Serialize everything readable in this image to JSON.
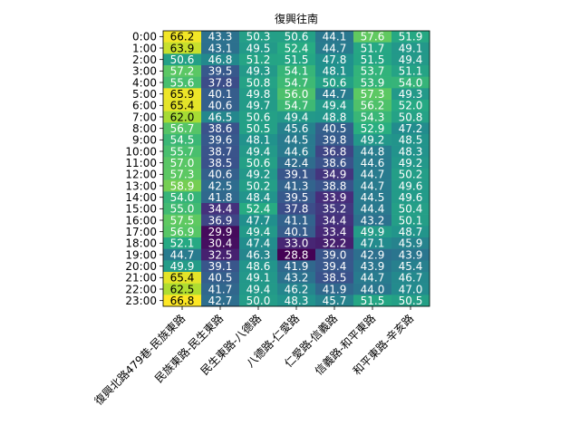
{
  "chart_data": {
    "type": "heatmap",
    "title": "復興往南",
    "xlabel": "",
    "ylabel": "",
    "colormap": "viridis",
    "value_range": [
      28.8,
      66.8
    ],
    "x_labels": [
      "復興北路479巷-民族東路",
      "民族東路-民生東路",
      "民生東路-八德路",
      "八德路-仁愛路",
      "仁愛路-信義路",
      "信義路-和平東路",
      "和平東路-辛亥路"
    ],
    "y_labels": [
      "0:00",
      "1:00",
      "2:00",
      "3:00",
      "4:00",
      "5:00",
      "6:00",
      "7:00",
      "8:00",
      "9:00",
      "10:00",
      "11:00",
      "12:00",
      "13:00",
      "14:00",
      "15:00",
      "16:00",
      "17:00",
      "18:00",
      "19:00",
      "20:00",
      "21:00",
      "22:00",
      "23:00"
    ],
    "values": [
      [
        66.2,
        43.3,
        50.3,
        50.6,
        44.1,
        57.6,
        51.9
      ],
      [
        63.9,
        43.1,
        49.5,
        52.4,
        44.7,
        51.7,
        49.1
      ],
      [
        50.6,
        46.8,
        51.2,
        51.5,
        47.8,
        51.5,
        49.4
      ],
      [
        57.2,
        39.5,
        49.3,
        54.1,
        48.1,
        53.7,
        51.1
      ],
      [
        55.6,
        37.8,
        50.8,
        54.7,
        50.6,
        53.9,
        54.0
      ],
      [
        65.9,
        40.1,
        49.8,
        56.0,
        44.7,
        57.3,
        49.3
      ],
      [
        65.4,
        40.6,
        49.7,
        54.7,
        49.4,
        56.2,
        52.0
      ],
      [
        62.0,
        46.5,
        50.6,
        49.4,
        48.8,
        54.3,
        50.8
      ],
      [
        56.7,
        38.6,
        50.5,
        45.6,
        40.5,
        52.9,
        47.2
      ],
      [
        54.5,
        39.6,
        48.1,
        44.5,
        39.8,
        49.2,
        48.5
      ],
      [
        55.7,
        38.7,
        49.4,
        44.6,
        36.8,
        44.8,
        48.3
      ],
      [
        57.0,
        38.5,
        50.6,
        42.4,
        38.6,
        44.6,
        49.2
      ],
      [
        57.3,
        40.6,
        49.2,
        39.1,
        34.9,
        44.7,
        50.2
      ],
      [
        58.9,
        42.5,
        50.2,
        41.3,
        38.8,
        44.7,
        49.6
      ],
      [
        54.0,
        41.8,
        48.4,
        39.5,
        33.9,
        44.5,
        49.6
      ],
      [
        55.0,
        34.4,
        52.4,
        37.8,
        35.2,
        44.4,
        50.4
      ],
      [
        57.5,
        36.9,
        47.7,
        41.1,
        34.4,
        43.2,
        50.1
      ],
      [
        56.9,
        29.9,
        49.4,
        40.1,
        33.4,
        49.9,
        48.7
      ],
      [
        52.1,
        30.4,
        47.4,
        33.0,
        32.2,
        47.1,
        45.9
      ],
      [
        44.7,
        32.5,
        46.3,
        28.8,
        39.0,
        42.9,
        43.9
      ],
      [
        49.9,
        39.1,
        48.6,
        41.9,
        39.4,
        43.9,
        45.4
      ],
      [
        65.4,
        40.5,
        49.1,
        43.2,
        38.5,
        44.7,
        46.7
      ],
      [
        62.5,
        41.7,
        49.4,
        46.2,
        41.9,
        44.0,
        47.0
      ],
      [
        66.8,
        42.7,
        50.0,
        48.3,
        45.7,
        51.5,
        50.5
      ]
    ]
  }
}
